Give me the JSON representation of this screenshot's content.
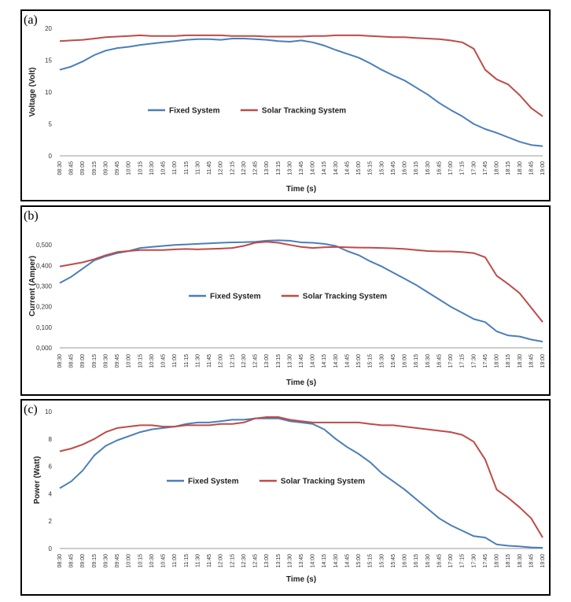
{
  "chart_data": [
    {
      "type": "line",
      "panel_label": "(a)",
      "title": "",
      "xlabel": "Time (s)",
      "ylabel": "Voltage (Volt)",
      "ylim": [
        0,
        20
      ],
      "yticks": [
        0,
        5,
        10,
        15,
        20
      ],
      "ytick_labels": [
        "0",
        "5",
        "10",
        "15",
        "20"
      ],
      "grid": false,
      "legend_position": "center",
      "categories": [
        "08:30",
        "08:45",
        "09:00",
        "09:15",
        "09:30",
        "09:45",
        "10:00",
        "10:15",
        "10:30",
        "10:45",
        "11:00",
        "11:15",
        "11:30",
        "11:45",
        "12:00",
        "12:15",
        "12:30",
        "12:45",
        "13:00",
        "13:15",
        "13:30",
        "13:45",
        "14:00",
        "14:15",
        "14:30",
        "14:45",
        "15:00",
        "15:15",
        "15:30",
        "15:45",
        "16:00",
        "16:15",
        "16:30",
        "16:45",
        "17:00",
        "17:15",
        "17:30",
        "17:45",
        "18:00",
        "18:15",
        "18:30",
        "18:45",
        "19:00"
      ],
      "series": [
        {
          "name": "Fixed System",
          "color": "#4a7ebb",
          "values": [
            13.5,
            14.0,
            14.8,
            15.8,
            16.5,
            16.9,
            17.1,
            17.4,
            17.6,
            17.8,
            18.0,
            18.2,
            18.3,
            18.3,
            18.2,
            18.4,
            18.4,
            18.3,
            18.2,
            18.0,
            17.9,
            18.1,
            17.8,
            17.3,
            16.6,
            16.0,
            15.4,
            14.5,
            13.5,
            12.6,
            11.8,
            10.7,
            9.6,
            8.3,
            7.2,
            6.2,
            5.0,
            4.2,
            3.6,
            2.9,
            2.2,
            1.7,
            1.5
          ]
        },
        {
          "name": "Solar Tracking System",
          "color": "#be4b48",
          "values": [
            18.0,
            18.1,
            18.2,
            18.4,
            18.6,
            18.7,
            18.8,
            18.9,
            18.8,
            18.8,
            18.8,
            18.9,
            18.9,
            18.9,
            18.9,
            18.8,
            18.8,
            18.8,
            18.7,
            18.7,
            18.7,
            18.7,
            18.8,
            18.8,
            18.9,
            18.9,
            18.9,
            18.8,
            18.7,
            18.6,
            18.6,
            18.5,
            18.4,
            18.3,
            18.1,
            17.8,
            16.8,
            13.5,
            12.0,
            11.2,
            9.5,
            7.5,
            6.2
          ]
        }
      ]
    },
    {
      "type": "line",
      "panel_label": "(b)",
      "title": "",
      "xlabel": "Time (s)",
      "ylabel": "Current (Amper)",
      "ylim": [
        0,
        0.6
      ],
      "yticks": [
        0,
        0.1,
        0.2,
        0.3,
        0.4,
        0.5
      ],
      "ytick_labels": [
        "0,000",
        "0,100",
        "0,200",
        "0,300",
        "0,400",
        "0,500"
      ],
      "grid": false,
      "legend_position": "center",
      "categories": [
        "08:30",
        "08:45",
        "09:00",
        "09:15",
        "09:30",
        "09:45",
        "10:00",
        "10:15",
        "10:30",
        "10:45",
        "11:00",
        "11:15",
        "11:30",
        "11:45",
        "12:00",
        "12:15",
        "12:30",
        "12:45",
        "13:00",
        "13:15",
        "13:30",
        "13:45",
        "14:00",
        "14:15",
        "14:30",
        "14:45",
        "15:00",
        "15:15",
        "15:30",
        "15:45",
        "16:00",
        "16:15",
        "16:30",
        "16:45",
        "17:00",
        "17:15",
        "17:30",
        "17:45",
        "18:00",
        "18:15",
        "18:30",
        "18:45",
        "19:00"
      ],
      "series": [
        {
          "name": "Fixed System",
          "color": "#4a7ebb",
          "values": [
            0.315,
            0.345,
            0.385,
            0.425,
            0.445,
            0.46,
            0.47,
            0.485,
            0.49,
            0.495,
            0.5,
            0.502,
            0.505,
            0.507,
            0.51,
            0.512,
            0.513,
            0.515,
            0.52,
            0.522,
            0.52,
            0.512,
            0.51,
            0.505,
            0.495,
            0.47,
            0.45,
            0.42,
            0.395,
            0.365,
            0.335,
            0.305,
            0.27,
            0.235,
            0.2,
            0.17,
            0.14,
            0.125,
            0.08,
            0.06,
            0.055,
            0.04,
            0.03
          ]
        },
        {
          "name": "Solar Tracking System",
          "color": "#be4b48",
          "values": [
            0.395,
            0.405,
            0.415,
            0.43,
            0.45,
            0.465,
            0.47,
            0.475,
            0.475,
            0.475,
            0.478,
            0.48,
            0.478,
            0.48,
            0.482,
            0.485,
            0.495,
            0.51,
            0.515,
            0.51,
            0.5,
            0.49,
            0.485,
            0.488,
            0.49,
            0.488,
            0.487,
            0.486,
            0.485,
            0.483,
            0.48,
            0.475,
            0.47,
            0.468,
            0.468,
            0.465,
            0.46,
            0.44,
            0.35,
            0.31,
            0.265,
            0.195,
            0.125
          ]
        }
      ]
    },
    {
      "type": "line",
      "panel_label": "(c)",
      "title": "",
      "xlabel": "Time (s)",
      "ylabel": "Power (Watt)",
      "ylim": [
        0,
        10
      ],
      "yticks": [
        0,
        2,
        4,
        6,
        8,
        10
      ],
      "ytick_labels": [
        "0",
        "2",
        "4",
        "6",
        "8",
        "10"
      ],
      "grid": false,
      "legend_position": "center",
      "categories": [
        "08:30",
        "08:45",
        "09:00",
        "09:15",
        "09:30",
        "09:45",
        "10:00",
        "10:15",
        "10:30",
        "10:45",
        "11:00",
        "11:15",
        "11:30",
        "11:45",
        "12:00",
        "12:15",
        "12:30",
        "12:45",
        "13:00",
        "13:15",
        "13:30",
        "13:45",
        "14:00",
        "14:15",
        "14:30",
        "14:45",
        "15:00",
        "15:15",
        "15:30",
        "15:45",
        "16:00",
        "16:15",
        "16:30",
        "16:45",
        "17:00",
        "17:15",
        "17:30",
        "17:45",
        "18:00",
        "18:15",
        "18:30",
        "18:45",
        "19:00"
      ],
      "series": [
        {
          "name": "Fixed System",
          "color": "#4a7ebb",
          "values": [
            4.4,
            4.9,
            5.7,
            6.8,
            7.5,
            7.9,
            8.2,
            8.5,
            8.7,
            8.8,
            8.9,
            9.1,
            9.2,
            9.2,
            9.3,
            9.4,
            9.4,
            9.5,
            9.5,
            9.5,
            9.3,
            9.2,
            9.1,
            8.7,
            8.0,
            7.4,
            6.9,
            6.3,
            5.5,
            4.9,
            4.3,
            3.6,
            2.9,
            2.2,
            1.7,
            1.3,
            0.9,
            0.8,
            0.3,
            0.2,
            0.15,
            0.08,
            0.05
          ]
        },
        {
          "name": "Solar Tracking System",
          "color": "#be4b48",
          "values": [
            7.1,
            7.3,
            7.6,
            8.0,
            8.5,
            8.8,
            8.9,
            9.0,
            9.0,
            8.9,
            8.9,
            9.0,
            9.0,
            9.0,
            9.1,
            9.1,
            9.2,
            9.5,
            9.6,
            9.6,
            9.4,
            9.3,
            9.2,
            9.2,
            9.2,
            9.2,
            9.2,
            9.1,
            9.0,
            9.0,
            8.9,
            8.8,
            8.7,
            8.6,
            8.5,
            8.3,
            7.8,
            6.5,
            4.3,
            3.7,
            3.0,
            2.2,
            0.8
          ]
        }
      ]
    }
  ]
}
